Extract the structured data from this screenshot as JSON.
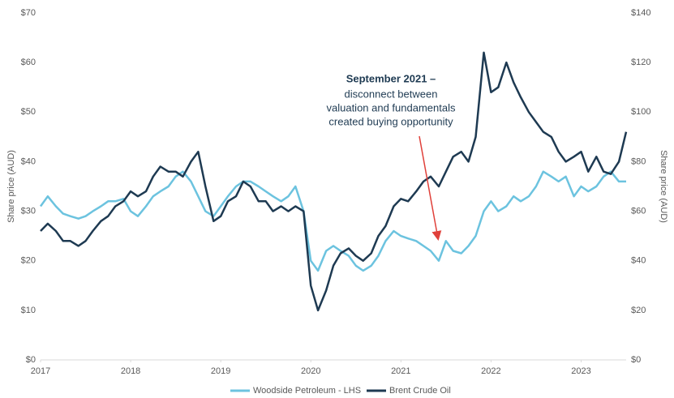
{
  "chart_data": {
    "type": "line",
    "x": [
      2017,
      2017.08,
      2017.17,
      2017.25,
      2017.33,
      2017.42,
      2017.5,
      2017.58,
      2017.67,
      2017.75,
      2017.83,
      2017.92,
      2018,
      2018.08,
      2018.17,
      2018.25,
      2018.33,
      2018.42,
      2018.5,
      2018.58,
      2018.67,
      2018.75,
      2018.83,
      2018.92,
      2019,
      2019.08,
      2019.17,
      2019.25,
      2019.33,
      2019.42,
      2019.5,
      2019.58,
      2019.67,
      2019.75,
      2019.83,
      2019.92,
      2020,
      2020.08,
      2020.17,
      2020.25,
      2020.33,
      2020.42,
      2020.5,
      2020.58,
      2020.67,
      2020.75,
      2020.83,
      2020.92,
      2021,
      2021.08,
      2021.17,
      2021.25,
      2021.33,
      2021.42,
      2021.5,
      2021.58,
      2021.67,
      2021.75,
      2021.83,
      2021.92,
      2022,
      2022.08,
      2022.17,
      2022.25,
      2022.33,
      2022.42,
      2022.5,
      2022.58,
      2022.67,
      2022.75,
      2022.83,
      2022.92,
      2023,
      2023.08,
      2023.17,
      2023.25,
      2023.33,
      2023.42,
      2023.5
    ],
    "series": [
      {
        "name": "Woodside Petroleum - LHS",
        "color": "#6cc3df",
        "axis": "y",
        "values": [
          31,
          33,
          31,
          29.5,
          29,
          28.5,
          29,
          30,
          31,
          32,
          32,
          32.5,
          30,
          29,
          31,
          33,
          34,
          35,
          37,
          38,
          36,
          33,
          30,
          29,
          31,
          33,
          35,
          36,
          36,
          35,
          34,
          33,
          32,
          33,
          35,
          30,
          20,
          18,
          22,
          23,
          22,
          21,
          19,
          18,
          19,
          21,
          24,
          26,
          25,
          24.5,
          24,
          23,
          22,
          20,
          24,
          22,
          21.5,
          23,
          25,
          30,
          32,
          30,
          31,
          33,
          32,
          33,
          35,
          38,
          37,
          36,
          37,
          33,
          35,
          34,
          35,
          37,
          38,
          36,
          36
        ]
      },
      {
        "name": "Brent Crude Oil",
        "color": "#1e3a52",
        "axis": "y2",
        "values": [
          52,
          55,
          52,
          48,
          48,
          46,
          48,
          52,
          56,
          58,
          62,
          64,
          68,
          66,
          68,
          74,
          78,
          76,
          76,
          74,
          80,
          84,
          70,
          56,
          58,
          64,
          66,
          72,
          70,
          64,
          64,
          60,
          62,
          60,
          62,
          60,
          30,
          20,
          28,
          38,
          43,
          45,
          42,
          40,
          43,
          50,
          54,
          62,
          65,
          64,
          68,
          72,
          74,
          70,
          76,
          82,
          84,
          80,
          90,
          124,
          108,
          110,
          120,
          112,
          106,
          100,
          96,
          92,
          90,
          84,
          80,
          82,
          84,
          76,
          82,
          76,
          75,
          80,
          92
        ]
      }
    ],
    "xlim": [
      2017,
      2023.5
    ],
    "xticks": [
      2017,
      2018,
      2019,
      2020,
      2021,
      2022,
      2023
    ],
    "ylim": [
      0,
      70
    ],
    "yticks": [
      {
        "value": 0,
        "label": "$0"
      },
      {
        "value": 10,
        "label": "$10"
      },
      {
        "value": 20,
        "label": "$20"
      },
      {
        "value": 30,
        "label": "$30"
      },
      {
        "value": 40,
        "label": "$40"
      },
      {
        "value": 50,
        "label": "$50"
      },
      {
        "value": 60,
        "label": "$60"
      },
      {
        "value": 70,
        "label": "$70"
      }
    ],
    "y2lim": [
      0,
      140
    ],
    "y2ticks": [
      {
        "value": 0,
        "label": "$0"
      },
      {
        "value": 20,
        "label": "$20"
      },
      {
        "value": 40,
        "label": "$40"
      },
      {
        "value": 60,
        "label": "$60"
      },
      {
        "value": 80,
        "label": "$80"
      },
      {
        "value": 100,
        "label": "$100"
      },
      {
        "value": 120,
        "label": "$120"
      },
      {
        "value": 140,
        "label": "$140"
      }
    ],
    "ylabel": "Share price (AUD)",
    "y2label": "Share price (AUD)",
    "annotation": {
      "title": "September 2021 –",
      "lines": [
        "disconnect between",
        "valuation and fundamentals",
        "created buying opportunity"
      ]
    },
    "legend": "bottom"
  }
}
